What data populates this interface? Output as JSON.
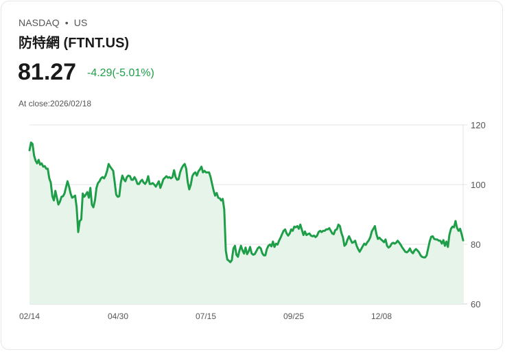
{
  "header": {
    "exchange": "NASDAQ",
    "separator": "•",
    "region": "US",
    "title": "防特網 (FTNT.US)",
    "price": "81.27",
    "change": "-4.29(-5.01%)",
    "close_label": "At close:2026/02/18"
  },
  "colors": {
    "line": "#1e9e48",
    "fill": "#e6f4ea",
    "change_text": "#1e9e48",
    "grid": "#e3e3e3"
  },
  "chart_data": {
    "type": "area",
    "title": "防特網 (FTNT.US)",
    "xlabel": "",
    "ylabel": "",
    "ylim": [
      60,
      120
    ],
    "yticks": [
      120,
      100,
      80,
      60
    ],
    "xticks": [
      "02/14",
      "04/30",
      "07/15",
      "09/25",
      "12/08"
    ],
    "grid": true,
    "legend": false,
    "x_start": "02/14",
    "x_end": "2026/02/18",
    "values": [
      111.5,
      114.1,
      113.6,
      109.7,
      108.0,
      107.1,
      108.3,
      106.7,
      107.1,
      106.0,
      106.2,
      105.3,
      105.3,
      102.1,
      100.7,
      96.1,
      94.7,
      97.9,
      95.6,
      93.3,
      94.3,
      95.9,
      96.1,
      97.0,
      99.1,
      101.1,
      99.3,
      97.0,
      95.6,
      95.9,
      96.3,
      92.4,
      84.1,
      87.8,
      88.3,
      97.0,
      95.9,
      96.6,
      97.5,
      95.6,
      98.9,
      93.3,
      92.4,
      94.7,
      98.9,
      100.5,
      101.1,
      102.1,
      102.5,
      102.1,
      103.0,
      104.6,
      106.9,
      106.0,
      105.3,
      104.6,
      100.7,
      96.6,
      95.9,
      96.1,
      100.7,
      103.0,
      101.8,
      101.1,
      102.5,
      103.0,
      102.8,
      101.6,
      101.6,
      102.5,
      101.6,
      100.2,
      100.2,
      101.1,
      101.6,
      100.7,
      100.2,
      101.1,
      102.8,
      100.2,
      100.2,
      100.5,
      100.0,
      99.3,
      100.2,
      101.1,
      98.9,
      100.2,
      101.8,
      102.3,
      102.8,
      102.3,
      102.5,
      102.1,
      102.5,
      104.8,
      102.5,
      101.6,
      101.8,
      104.1,
      105.5,
      106.4,
      106.9,
      105.3,
      100.9,
      98.4,
      100.0,
      102.8,
      103.7,
      104.1,
      103.0,
      104.4,
      105.1,
      106.0,
      104.1,
      104.6,
      104.1,
      104.1,
      104.1,
      102.5,
      100.2,
      98.0,
      96.3,
      97.2,
      95.6,
      95.4,
      94.7,
      95.2,
      91.7,
      77.9,
      74.9,
      74.5,
      74.0,
      74.7,
      78.6,
      79.5,
      76.5,
      75.8,
      77.9,
      79.5,
      77.9,
      76.9,
      78.9,
      76.7,
      77.6,
      79.1,
      76.9,
      76.5,
      76.7,
      77.6,
      78.6,
      79.1,
      78.6,
      77.0,
      76.3,
      76.3,
      78.4,
      79.5,
      79.9,
      79.3,
      80.9,
      79.1,
      80.2,
      79.9,
      81.2,
      82.2,
      83.4,
      84.5,
      85.0,
      83.6,
      82.9,
      83.6,
      85.0,
      84.5,
      85.9,
      85.7,
      86.1,
      85.2,
      86.6,
      84.9,
      83.1,
      84.3,
      83.1,
      83.4,
      83.6,
      82.9,
      82.7,
      82.9,
      82.4,
      82.9,
      84.1,
      84.5,
      84.1,
      84.5,
      84.5,
      85.0,
      85.0,
      85.4,
      84.5,
      83.6,
      83.4,
      84.8,
      85.0,
      86.6,
      86.1,
      83.8,
      82.4,
      79.5,
      80.0,
      81.6,
      82.7,
      81.6,
      80.5,
      80.7,
      81.2,
      79.5,
      78.4,
      77.5,
      78.4,
      79.3,
      80.2,
      79.8,
      80.7,
      81.3,
      82.4,
      84.3,
      85.2,
      86.1,
      83.4,
      81.8,
      82.2,
      81.6,
      81.2,
      80.7,
      81.6,
      79.5,
      78.9,
      79.3,
      80.2,
      80.5,
      80.2,
      80.5,
      81.2,
      80.5,
      79.8,
      78.9,
      78.2,
      77.5,
      77.3,
      77.7,
      78.6,
      77.5,
      77.0,
      77.9,
      78.4,
      77.9,
      77.3,
      76.3,
      75.8,
      75.6,
      75.6,
      76.3,
      78.6,
      80.9,
      82.5,
      82.7,
      81.8,
      81.6,
      81.6,
      81.2,
      81.2,
      80.2,
      81.4,
      79.5,
      80.9,
      79.1,
      83.2,
      85.2,
      85.9,
      85.7,
      87.8,
      85.5,
      84.5,
      85.2,
      83.4,
      81.3
    ]
  }
}
